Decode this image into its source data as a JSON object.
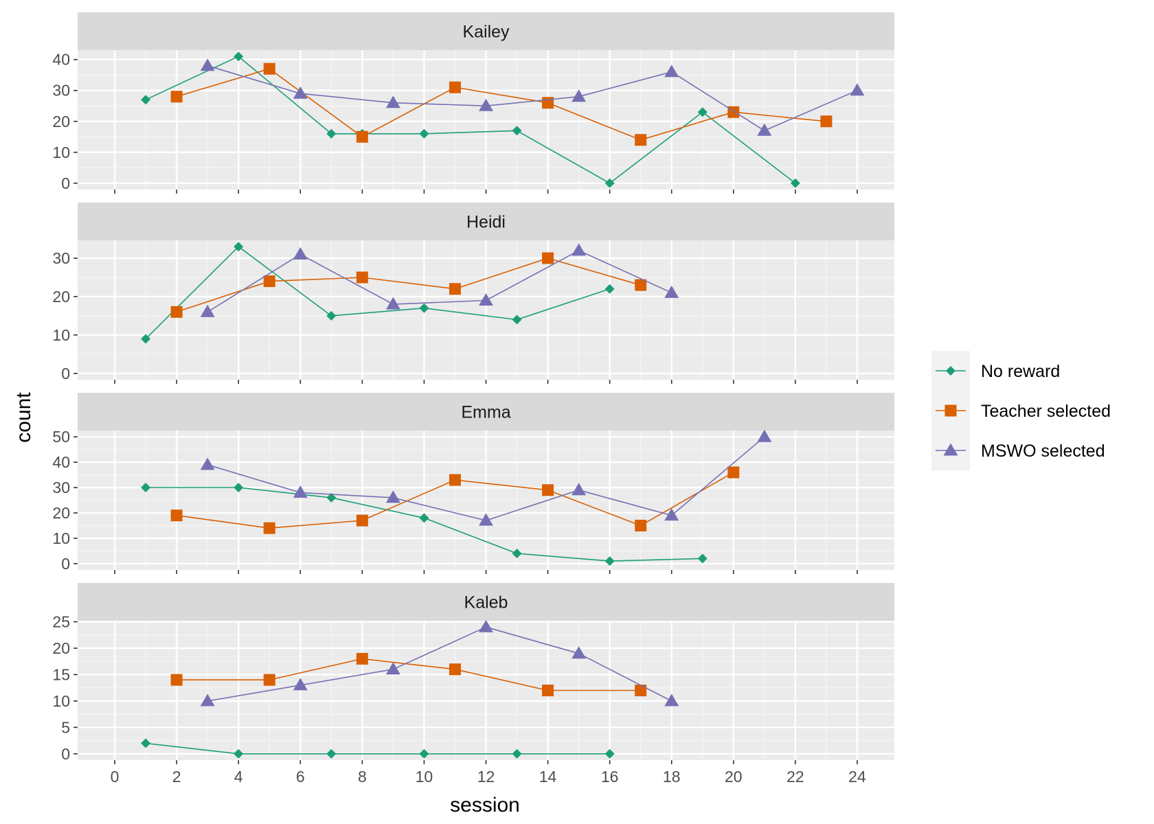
{
  "chart_data": {
    "type": "line",
    "xlabel": "session",
    "ylabel": "count",
    "xlim": [
      -1.2,
      25.2
    ],
    "x_ticks": [
      0,
      2,
      4,
      6,
      8,
      10,
      12,
      14,
      16,
      18,
      20,
      22,
      24
    ],
    "legend_position": "right",
    "series_styles": [
      {
        "name": "No reward",
        "color": "#1b9e77",
        "marker": "diamond"
      },
      {
        "name": "Teacher selected",
        "color": "#d95f02",
        "marker": "square"
      },
      {
        "name": "MSWO selected",
        "color": "#7570b3",
        "marker": "triangle"
      }
    ],
    "panels": [
      {
        "title": "Kailey",
        "ylim": [
          -2.05,
          43.05
        ],
        "y_ticks": [
          0,
          10,
          20,
          30,
          40
        ],
        "series": [
          {
            "name": "No reward",
            "x": [
              1,
              4,
              7,
              8,
              10,
              13,
              16,
              19,
              22
            ],
            "y": [
              27,
              41,
              16,
              16,
              16,
              17,
              0,
              23,
              0
            ]
          },
          {
            "name": "Teacher selected",
            "x": [
              2,
              5,
              8,
              11,
              14,
              17,
              20,
              23
            ],
            "y": [
              28,
              37,
              15,
              31,
              26,
              14,
              23,
              20
            ]
          },
          {
            "name": "MSWO selected",
            "x": [
              3,
              6,
              9,
              12,
              15,
              18,
              21,
              24
            ],
            "y": [
              38,
              29,
              26,
              25,
              28,
              36,
              17,
              30
            ]
          }
        ]
      },
      {
        "title": "Heidi",
        "ylim": [
          -1.65,
          34.65
        ],
        "y_ticks": [
          0,
          10,
          20,
          30
        ],
        "series": [
          {
            "name": "No reward",
            "x": [
              1,
              4,
              7,
              10,
              13,
              16
            ],
            "y": [
              9,
              33,
              15,
              17,
              14,
              22
            ]
          },
          {
            "name": "Teacher selected",
            "x": [
              2,
              5,
              8,
              11,
              14,
              17
            ],
            "y": [
              16,
              24,
              25,
              22,
              30,
              23
            ]
          },
          {
            "name": "MSWO selected",
            "x": [
              3,
              6,
              9,
              12,
              15,
              18
            ],
            "y": [
              16,
              31,
              18,
              19,
              32,
              21
            ]
          }
        ]
      },
      {
        "title": "Emma",
        "ylim": [
          -2.5,
          52.5
        ],
        "y_ticks": [
          0,
          10,
          20,
          30,
          40,
          50
        ],
        "series": [
          {
            "name": "No reward",
            "x": [
              1,
              4,
              7,
              10,
              13,
              16,
              19
            ],
            "y": [
              30,
              30,
              26,
              18,
              4,
              1,
              2
            ]
          },
          {
            "name": "Teacher selected",
            "x": [
              2,
              5,
              8,
              11,
              14,
              17,
              20
            ],
            "y": [
              19,
              14,
              17,
              33,
              29,
              15,
              36
            ]
          },
          {
            "name": "MSWO selected",
            "x": [
              3,
              6,
              9,
              12,
              15,
              18,
              21
            ],
            "y": [
              39,
              28,
              26,
              17,
              29,
              19,
              50
            ]
          }
        ]
      },
      {
        "title": "Kaleb",
        "ylim": [
          -1.2,
          25.2
        ],
        "y_ticks": [
          0,
          5,
          10,
          15,
          20,
          25
        ],
        "series": [
          {
            "name": "No reward",
            "x": [
              1,
              4,
              7,
              10,
              13,
              16
            ],
            "y": [
              2,
              0,
              0,
              0,
              0,
              0
            ]
          },
          {
            "name": "Teacher selected",
            "x": [
              2,
              5,
              8,
              11,
              14,
              17
            ],
            "y": [
              14,
              14,
              18,
              16,
              12,
              12
            ]
          },
          {
            "name": "MSWO selected",
            "x": [
              3,
              6,
              9,
              12,
              15,
              18
            ],
            "y": [
              10,
              13,
              16,
              24,
              19,
              10
            ]
          }
        ]
      }
    ]
  }
}
